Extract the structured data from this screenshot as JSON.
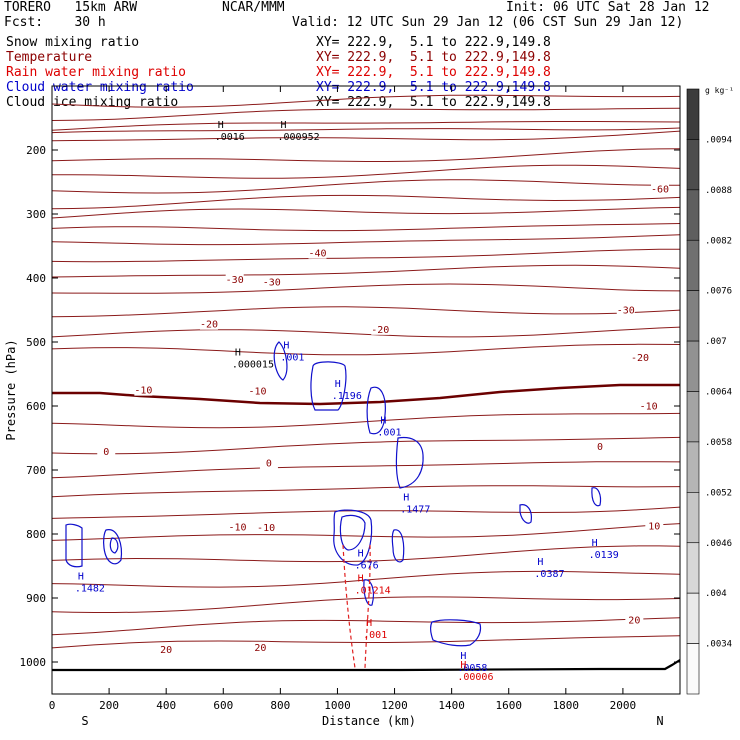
{
  "header": {
    "model": "TORERO   15km ARW",
    "org": "NCAR/MMM",
    "init": "Init: 06 UTC Sat 28 Jan 12",
    "fcst": "Fcst:    30 h",
    "valid": "Valid: 12 UTC Sun 29 Jan 12 (06 CST Sun 29 Jan 12)"
  },
  "legend": [
    {
      "name": "Snow mixing ratio",
      "xy": "XY= 222.9,  5.1 to 222.9,149.8",
      "color": "#000000"
    },
    {
      "name": "Temperature",
      "xy": "XY= 222.9,  5.1 to 222.9,149.8",
      "color": "#8b0000"
    },
    {
      "name": "Rain water mixing ratio",
      "xy": "XY= 222.9,  5.1 to 222.9,149.8",
      "color": "#dd0000"
    },
    {
      "name": "Cloud water mixing ratio",
      "xy": "XY= 222.9,  5.1 to 222.9,149.8",
      "color": "#0000cc"
    },
    {
      "name": "Cloud ice mixing ratio",
      "xy": "XY= 222.9,  5.1 to 222.9,149.8",
      "color": "#000000"
    }
  ],
  "colorbar": {
    "unit": "g kg⁻¹",
    "labels": [
      ".0094",
      ".0088",
      ".0082",
      ".0076",
      ".007",
      ".0064",
      ".0058",
      ".0052",
      ".0046",
      ".004",
      ".0034"
    ]
  },
  "chart_data": {
    "type": "contour",
    "xlabel": "Distance (km)",
    "ylabel": "Pressure (hPa)",
    "xlim": [
      0,
      2200
    ],
    "ylim": [
      1050,
      100
    ],
    "x_ticks": [
      "0",
      "200",
      "400",
      "600",
      "800",
      "1000",
      "1200",
      "1400",
      "1600",
      "1800",
      "2000"
    ],
    "y_ticks": [
      "200",
      "300",
      "400",
      "500",
      "600",
      "700",
      "800",
      "900",
      "1000"
    ],
    "ends": {
      "left": "S",
      "right": "N"
    },
    "temperature_isotherm_labels": [
      {
        "x": 2130,
        "p": 262,
        "label": "-60"
      },
      {
        "x": 930,
        "p": 362,
        "label": "-40"
      },
      {
        "x": 640,
        "p": 403,
        "label": "-30"
      },
      {
        "x": 770,
        "p": 407,
        "label": "-30"
      },
      {
        "x": 2010,
        "p": 451,
        "label": "-30"
      },
      {
        "x": 550,
        "p": 473,
        "label": "-20"
      },
      {
        "x": 1150,
        "p": 481,
        "label": "-20"
      },
      {
        "x": 2060,
        "p": 525,
        "label": "-20"
      },
      {
        "x": 320,
        "p": 576,
        "label": "-10"
      },
      {
        "x": 720,
        "p": 577,
        "label": "-10"
      },
      {
        "x": 2090,
        "p": 601,
        "label": "-10"
      },
      {
        "x": 190,
        "p": 672,
        "label": "0"
      },
      {
        "x": 760,
        "p": 690,
        "label": "0"
      },
      {
        "x": 1920,
        "p": 664,
        "label": "0"
      },
      {
        "x": 650,
        "p": 790,
        "label": "-10"
      },
      {
        "x": 750,
        "p": 791,
        "label": "-10"
      },
      {
        "x": 2110,
        "p": 788,
        "label": "10"
      },
      {
        "x": 2040,
        "p": 935,
        "label": "20"
      },
      {
        "x": 400,
        "p": 981,
        "label": "20"
      },
      {
        "x": 730,
        "p": 978,
        "label": "20"
      }
    ],
    "maxima_labels": [
      {
        "field": "Cloud ice mixing ratio",
        "x": 570,
        "p": 181,
        "label": ".0016"
      },
      {
        "field": "Cloud ice mixing ratio",
        "x": 790,
        "p": 181,
        "label": ".000952"
      },
      {
        "field": "Snow mixing ratio",
        "x": 630,
        "p": 537,
        "label": ".000015"
      },
      {
        "field": "Cloud water mixing ratio",
        "x": 800,
        "p": 526,
        "label": ".001"
      },
      {
        "field": "Cloud water mixing ratio",
        "x": 980,
        "p": 586,
        "label": ".1196"
      },
      {
        "field": "Cloud water mixing ratio",
        "x": 1140,
        "p": 643,
        "label": ".001"
      },
      {
        "field": "Cloud water mixing ratio",
        "x": 1220,
        "p": 763,
        "label": ".1477"
      },
      {
        "field": "Cloud water mixing ratio",
        "x": 1060,
        "p": 851,
        "label": ".676"
      },
      {
        "field": "Rain water mixing ratio",
        "x": 1060,
        "p": 890,
        "label": ".01214"
      },
      {
        "field": "Rain water mixing ratio",
        "x": 1090,
        "p": 959,
        "label": ".001"
      },
      {
        "field": "Cloud water mixing ratio",
        "x": 80,
        "p": 887,
        "label": ".1482"
      },
      {
        "field": "Cloud water mixing ratio",
        "x": 1690,
        "p": 864,
        "label": ".0387"
      },
      {
        "field": "Cloud water mixing ratio",
        "x": 1880,
        "p": 834,
        "label": ".0139"
      },
      {
        "field": "Cloud water mixing ratio",
        "x": 1420,
        "p": 1011,
        "label": ".0058"
      },
      {
        "field": "Rain water mixing ratio",
        "x": 1420,
        "p": 1025,
        "label": ".00006"
      }
    ]
  }
}
